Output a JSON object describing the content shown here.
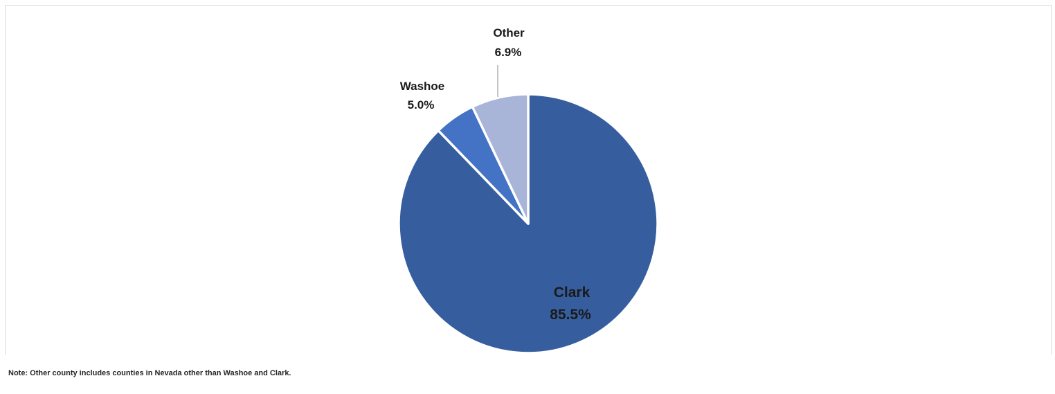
{
  "chart_data": {
    "type": "pie",
    "title": "",
    "slices": [
      {
        "label": "Clark",
        "value": 85.5,
        "value_text": "85.5%",
        "color": "#365E9F"
      },
      {
        "label": "Washoe",
        "value": 5.0,
        "value_text": "5.0%",
        "color": "#4472C4"
      },
      {
        "label": "Other",
        "value": 6.9,
        "value_text": "6.9%",
        "color": "#A8B4D8"
      }
    ],
    "start": "12 o'clock",
    "direction": "clockwise",
    "slice_border_color": "#ffffff",
    "leader_line_color": "#a6a6a6"
  },
  "note": "Note: Other county includes counties in Nevada other than Washoe and Clark."
}
